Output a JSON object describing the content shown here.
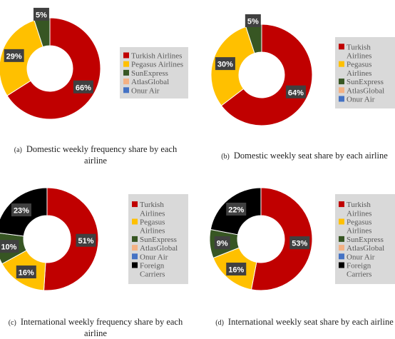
{
  "colors": {
    "Turkish Airlines": "#c00000",
    "Pegasus Airlines": "#ffc000",
    "SunExpress": "#375623",
    "AtlasGlobal": "#f4b183",
    "Onur Air": "#4472c4",
    "Foreign Carriers": "#000000"
  },
  "chart_data": [
    {
      "type": "pie",
      "donut": true,
      "caption_letter": "(a)",
      "caption": "Domestic weekly frequency share by each airline",
      "legend": [
        "Turkish Airlines",
        "Pegasus Airlines",
        "SunExpress",
        "AtlasGlobal",
        "Onur Air"
      ],
      "slices": [
        {
          "name": "Turkish Airlines",
          "value": 66,
          "label": "66%"
        },
        {
          "name": "Pegasus Airlines",
          "value": 29,
          "label": "29%"
        },
        {
          "name": "SunExpress",
          "value": 5,
          "label": "5%"
        }
      ]
    },
    {
      "type": "pie",
      "donut": true,
      "caption_letter": "(b)",
      "caption": "Domestic weekly seat share by each airline",
      "legend": [
        "Turkish Airlines",
        "Pegasus Airlines",
        "SunExpress",
        "AtlasGlobal",
        "Onur Air"
      ],
      "slices": [
        {
          "name": "Turkish Airlines",
          "value": 64,
          "label": "64%"
        },
        {
          "name": "Pegasus Airlines",
          "value": 30,
          "label": "30%"
        },
        {
          "name": "SunExpress",
          "value": 5,
          "label": "5%"
        }
      ]
    },
    {
      "type": "pie",
      "donut": true,
      "caption_letter": "(c)",
      "caption": "International weekly frequency share by each airline",
      "legend": [
        "Turkish Airlines",
        "Pegasus Airlines",
        "SunExpress",
        "AtlasGlobal",
        "Onur Air",
        "Foreign Carriers"
      ],
      "slices": [
        {
          "name": "Turkish Airlines",
          "value": 51,
          "label": "51%"
        },
        {
          "name": "Pegasus Airlines",
          "value": 16,
          "label": "16%"
        },
        {
          "name": "SunExpress",
          "value": 10,
          "label": "10%"
        },
        {
          "name": "Foreign Carriers",
          "value": 23,
          "label": "23%"
        }
      ]
    },
    {
      "type": "pie",
      "donut": true,
      "caption_letter": "(d)",
      "caption": "International weekly seat share by each airline",
      "legend": [
        "Turkish Airlines",
        "Pegasus Airlines",
        "SunExpress",
        "AtlasGlobal",
        "Onur Air",
        "Foreign Carriers"
      ],
      "slices": [
        {
          "name": "Turkish Airlines",
          "value": 53,
          "label": "53%"
        },
        {
          "name": "Pegasus Airlines",
          "value": 16,
          "label": "16%"
        },
        {
          "name": "SunExpress",
          "value": 9,
          "label": "9%"
        },
        {
          "name": "Foreign Carriers",
          "value": 22,
          "label": "22%"
        }
      ]
    }
  ]
}
